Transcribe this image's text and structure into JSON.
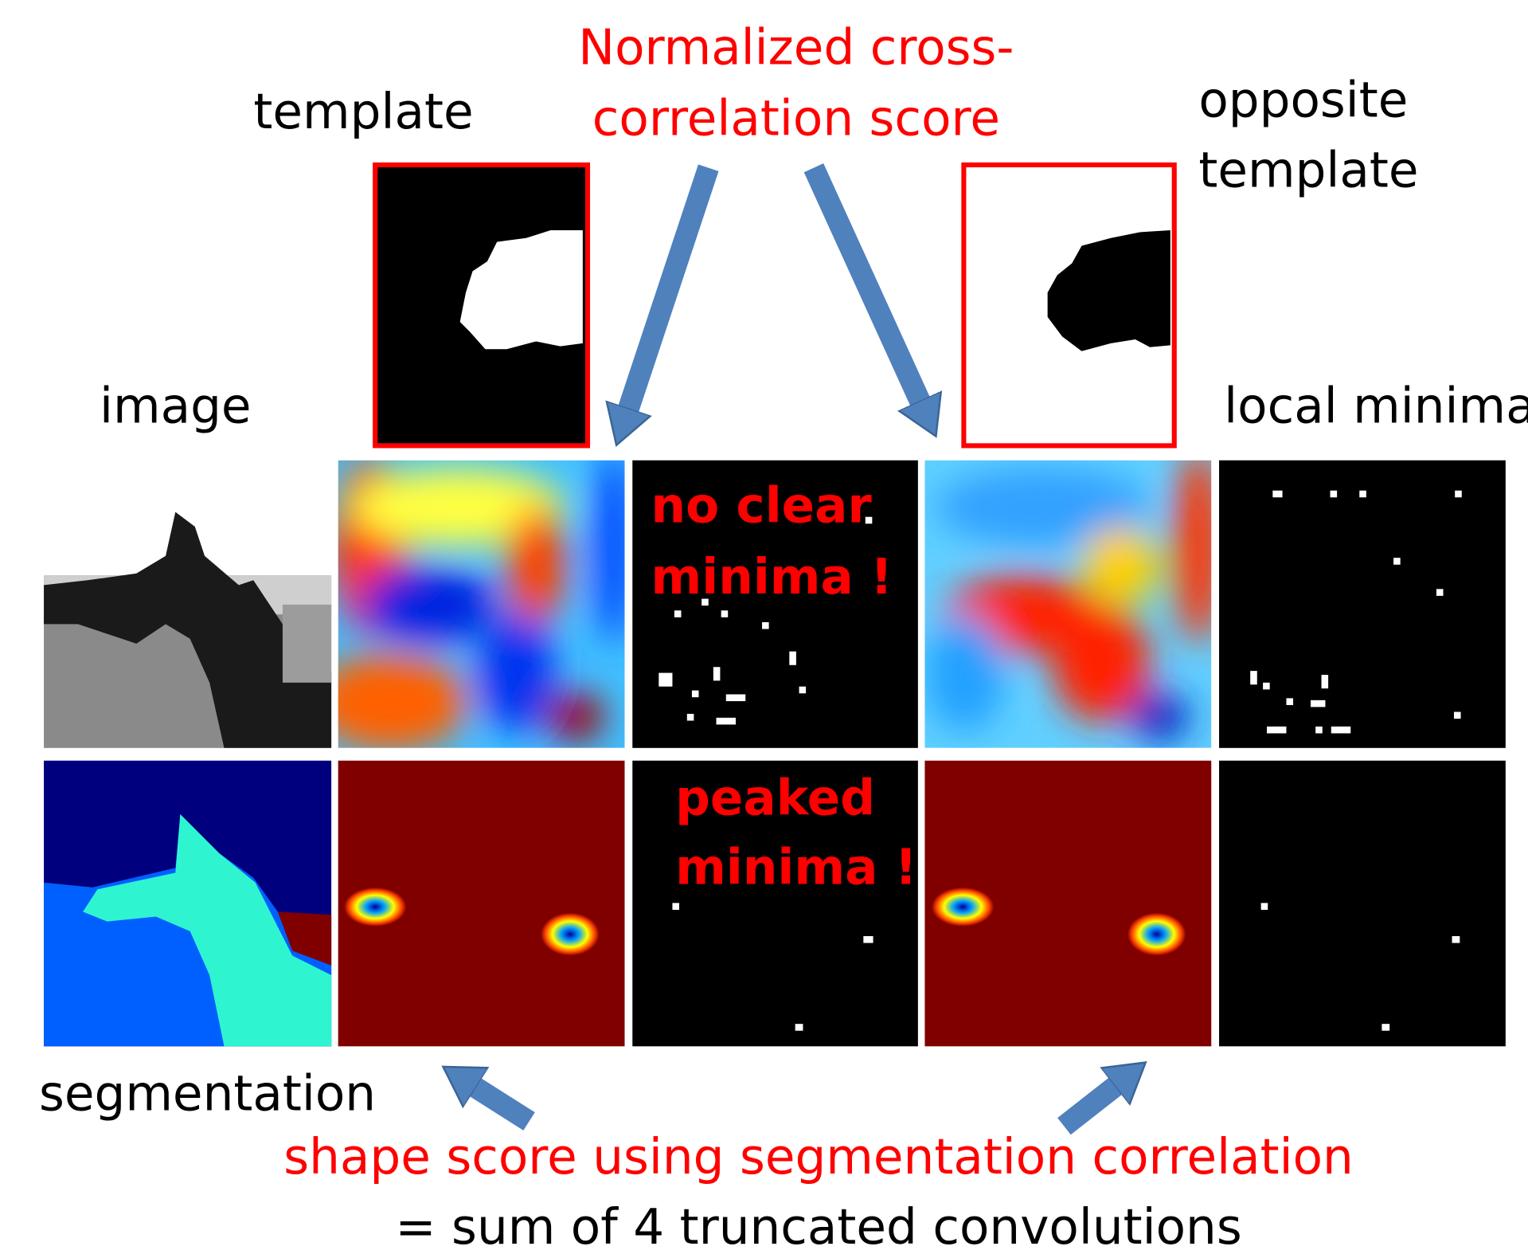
{
  "header": {
    "title_lines": [
      "Normalized cross-",
      "correlation score"
    ]
  },
  "labels": {
    "template": "template",
    "opposite_template": [
      "opposite",
      "template"
    ],
    "image": "image",
    "local_minima": "local minima",
    "segmentation": "segmentation"
  },
  "annotations": {
    "no_clear": [
      "no clear",
      "minima !"
    ],
    "peaked": [
      "peaked",
      "minima !"
    ]
  },
  "footer": {
    "line1": "shape score using segmentation correlation",
    "line2": "= sum of 4 truncated convolutions"
  }
}
